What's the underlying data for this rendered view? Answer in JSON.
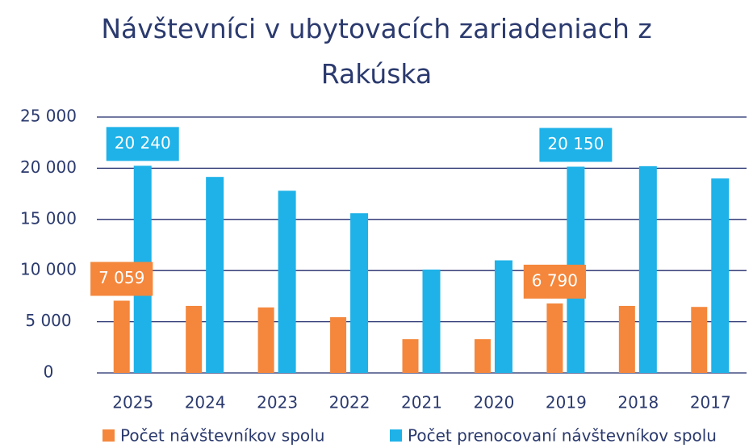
{
  "chart_data": {
    "type": "bar",
    "title": "Návštevníci v ubytovacích zariadeniach z Rakúska",
    "categories": [
      "2025",
      "2024",
      "2023",
      "2022",
      "2021",
      "2020",
      "2019",
      "2018",
      "2017"
    ],
    "series": [
      {
        "name": "Počet návštevníkov spolu",
        "color": "#f4873c",
        "values": [
          7059,
          6550,
          6400,
          5450,
          3300,
          3300,
          6790,
          6550,
          6450
        ],
        "value_labels": [
          "7 059",
          null,
          null,
          null,
          null,
          null,
          "6 790",
          null,
          null
        ]
      },
      {
        "name": "Počet prenocovaní návštevníkov spolu",
        "color": "#1eb2e8",
        "values": [
          20240,
          19150,
          17800,
          15600,
          10100,
          11000,
          20150,
          20200,
          19000
        ],
        "value_labels": [
          "20 240",
          null,
          null,
          null,
          null,
          null,
          "20 150",
          null,
          null
        ]
      }
    ],
    "ylim": [
      0,
      25000
    ],
    "yticks": [
      0,
      {
        "value": 5000,
        "label": "5 000"
      },
      {
        "value": 10000,
        "label": "10 000"
      },
      {
        "value": 15000,
        "label": "15 000"
      },
      {
        "value": 20000,
        "label": "20 000"
      },
      {
        "value": 25000,
        "label": "25 000"
      }
    ],
    "grid": true,
    "legend": "bottom"
  }
}
